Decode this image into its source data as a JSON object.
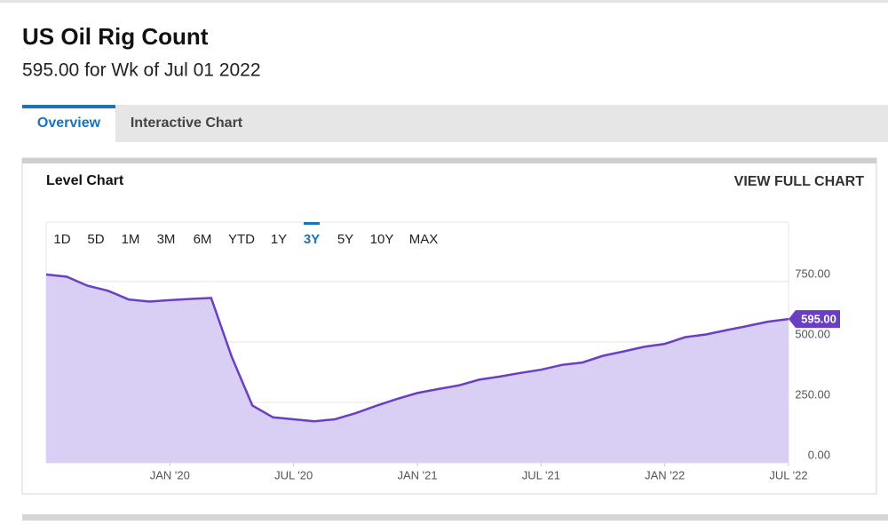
{
  "header": {
    "title": "US Oil Rig Count",
    "subtitle": "595.00 for Wk of Jul 01 2022"
  },
  "tabs": {
    "items": [
      "Overview",
      "Interactive Chart"
    ],
    "active_index": 0
  },
  "panel": {
    "title": "Level Chart",
    "link": "VIEW FULL CHART"
  },
  "range_buttons": {
    "items": [
      "1D",
      "5D",
      "1M",
      "3M",
      "6M",
      "YTD",
      "1Y",
      "3Y",
      "5Y",
      "10Y",
      "MAX"
    ],
    "active_index": 7
  },
  "chart_data": {
    "type": "area",
    "color": "#6a3fc4",
    "fill": "#d9cef3",
    "x": [
      "2019-07",
      "2019-08",
      "2019-09",
      "2019-10",
      "2019-11",
      "2019-12",
      "2020-01",
      "2020-02",
      "2020-03",
      "2020-04",
      "2020-05",
      "2020-06",
      "2020-07",
      "2020-08",
      "2020-09",
      "2020-10",
      "2020-11",
      "2020-12",
      "2021-01",
      "2021-02",
      "2021-03",
      "2021-04",
      "2021-05",
      "2021-06",
      "2021-07",
      "2021-08",
      "2021-09",
      "2021-10",
      "2021-11",
      "2021-12",
      "2022-01",
      "2022-02",
      "2022-03",
      "2022-04",
      "2022-05",
      "2022-06",
      "2022-07"
    ],
    "series": [
      {
        "name": "US Oil Rig Count",
        "values": [
          779,
          770,
          733,
          712,
          676,
          667,
          673,
          678,
          682,
          438,
          237,
          188,
          180,
          172,
          180,
          205,
          236,
          264,
          289,
          305,
          320,
          344,
          357,
          372,
          385,
          405,
          415,
          443,
          461,
          480,
          492,
          520,
          531,
          549,
          566,
          584,
          595
        ]
      }
    ],
    "current_value": {
      "value": 595,
      "label": "595.00"
    },
    "xlim": [
      "2019-07",
      "2022-07"
    ],
    "xticks": [
      {
        "value": "2020-01",
        "label": "JAN '20"
      },
      {
        "value": "2020-07",
        "label": "JUL '20"
      },
      {
        "value": "2021-01",
        "label": "JAN '21"
      },
      {
        "value": "2021-07",
        "label": "JUL '21"
      },
      {
        "value": "2022-01",
        "label": "JAN '22"
      },
      {
        "value": "2022-07",
        "label": "JUL '22"
      }
    ],
    "ylim": [
      0,
      996
    ],
    "yticks": [
      {
        "value": 0,
        "label": "0.00"
      },
      {
        "value": 250,
        "label": "250.00"
      },
      {
        "value": 500,
        "label": "500.00"
      },
      {
        "value": 750,
        "label": "750.00"
      }
    ],
    "grid": true
  }
}
